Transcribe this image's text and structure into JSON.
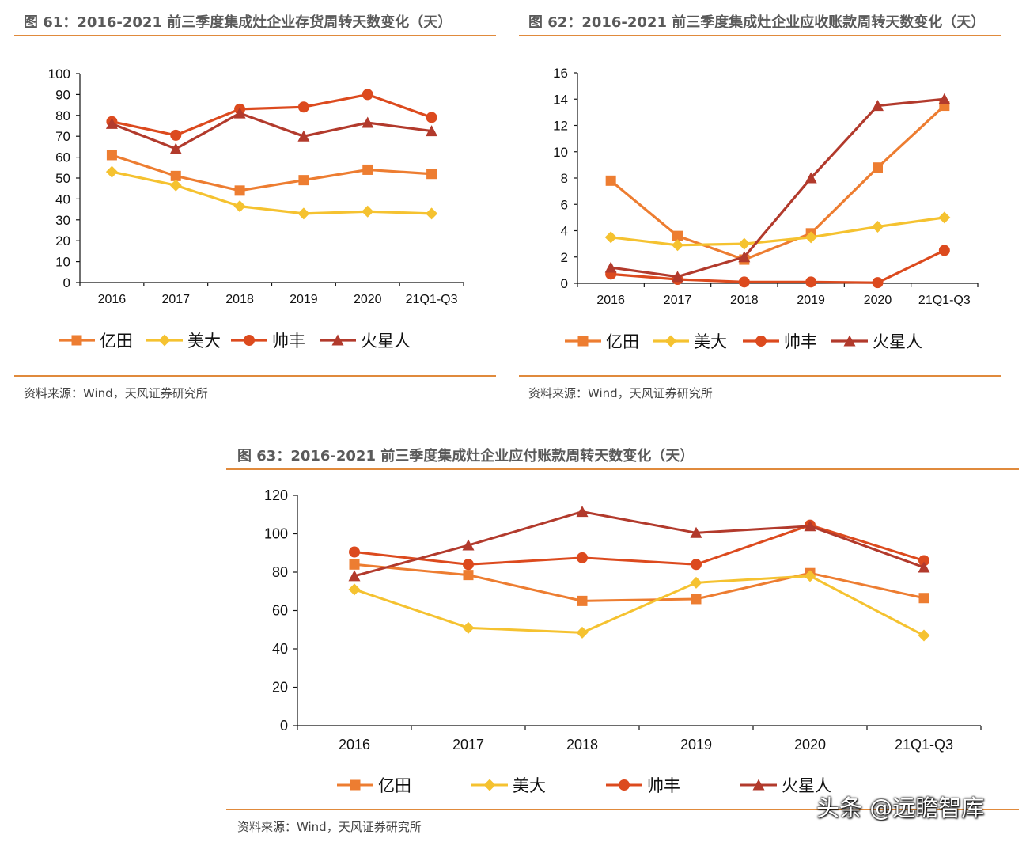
{
  "colors": {
    "accent": "#e08a3c",
    "yitian": "#ED7D31",
    "meida": "#F5C230",
    "shuaifeng": "#DC4A1E",
    "huoxingren": "#B23A2C"
  },
  "legend": [
    "亿田",
    "美大",
    "帅丰",
    "火星人"
  ],
  "watermark": "头条 @远瞻智库",
  "chart_data": [
    {
      "type": "line",
      "title": "图 61：2016-2021 前三季度集成灶企业存货周转天数变化（天）",
      "source": "资料来源：Wind，天风证券研究所",
      "categories": [
        "2016",
        "2017",
        "2018",
        "2019",
        "2020",
        "21Q1-Q3"
      ],
      "ylim": [
        0,
        100
      ],
      "yticks": [
        "0",
        "10",
        "20",
        "30",
        "40",
        "50",
        "60",
        "70",
        "80",
        "90",
        "100"
      ],
      "series": [
        {
          "name": "亿田",
          "marker": "square",
          "values": [
            61,
            51,
            44,
            49,
            54,
            52
          ]
        },
        {
          "name": "美大",
          "marker": "diamond",
          "values": [
            53,
            46.5,
            36.5,
            33,
            34,
            33
          ]
        },
        {
          "name": "帅丰",
          "marker": "circle",
          "values": [
            77,
            70.5,
            83,
            84,
            90,
            79
          ]
        },
        {
          "name": "火星人",
          "marker": "triangle",
          "values": [
            76,
            64,
            81,
            70,
            76.5,
            72.5
          ]
        }
      ]
    },
    {
      "type": "line",
      "title": "图 62：2016-2021 前三季度集成灶企业应收账款周转天数变化（天）",
      "source": "资料来源：Wind，天风证券研究所",
      "categories": [
        "2016",
        "2017",
        "2018",
        "2019",
        "2020",
        "21Q1-Q3"
      ],
      "ylim": [
        0,
        16
      ],
      "yticks": [
        "0",
        "2",
        "4",
        "6",
        "8",
        "10",
        "12",
        "14",
        "16"
      ],
      "series": [
        {
          "name": "亿田",
          "marker": "square",
          "values": [
            7.8,
            3.6,
            1.8,
            3.8,
            8.8,
            13.5
          ]
        },
        {
          "name": "美大",
          "marker": "diamond",
          "values": [
            3.5,
            2.9,
            3.0,
            3.5,
            4.3,
            5.0
          ]
        },
        {
          "name": "帅丰",
          "marker": "circle",
          "values": [
            0.7,
            0.3,
            0.1,
            0.1,
            0.05,
            2.5
          ]
        },
        {
          "name": "火星人",
          "marker": "triangle",
          "values": [
            1.2,
            0.5,
            2.0,
            8.0,
            13.5,
            14.0
          ]
        }
      ]
    },
    {
      "type": "line",
      "title": "图 63：2016-2021 前三季度集成灶企业应付账款周转天数变化（天）",
      "source": "资料来源：Wind，天风证券研究所",
      "categories": [
        "2016",
        "2017",
        "2018",
        "2019",
        "2020",
        "21Q1-Q3"
      ],
      "ylim": [
        0,
        120
      ],
      "yticks": [
        "0",
        "20",
        "40",
        "60",
        "80",
        "100",
        "120"
      ],
      "series": [
        {
          "name": "亿田",
          "marker": "square",
          "values": [
            84,
            78.5,
            65,
            66,
            79.5,
            66.5
          ]
        },
        {
          "name": "美大",
          "marker": "diamond",
          "values": [
            71,
            51,
            48.5,
            74.5,
            78,
            47
          ]
        },
        {
          "name": "帅丰",
          "marker": "circle",
          "values": [
            90.5,
            84,
            87.5,
            84,
            104.5,
            86
          ]
        },
        {
          "name": "火星人",
          "marker": "triangle",
          "values": [
            78,
            94,
            111.5,
            100.5,
            104,
            82.5
          ]
        }
      ]
    }
  ]
}
